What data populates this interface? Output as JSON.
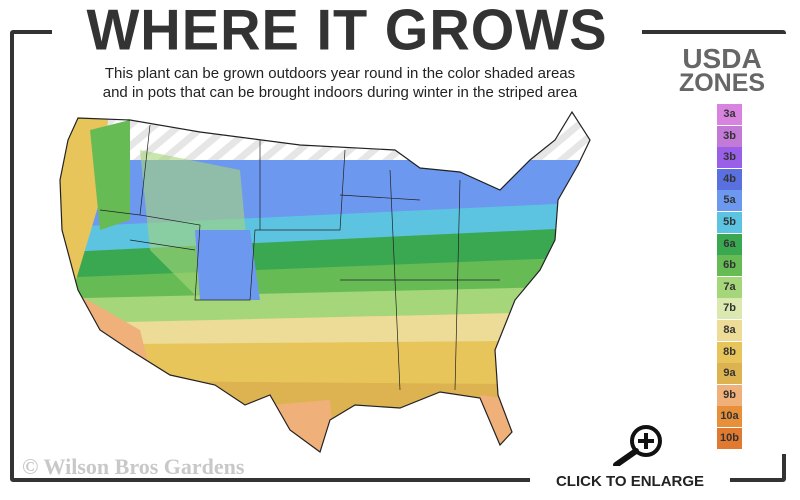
{
  "title": "WHERE IT GROWS",
  "subtitle": [
    "This plant can be grown outdoors year round in the color shaded areas",
    "and in pots that can be brought indoors during winter in the striped area"
  ],
  "legend": {
    "title_line1": "USDA",
    "title_line2": "ZONES",
    "zones": [
      {
        "label": "3a",
        "color": "#d983e0"
      },
      {
        "label": "3b",
        "color": "#c37ad6"
      },
      {
        "label": "3b",
        "color": "#9a5fe8"
      },
      {
        "label": "4b",
        "color": "#5a6fe0"
      },
      {
        "label": "5a",
        "color": "#6d98f0"
      },
      {
        "label": "5b",
        "color": "#5cc4e0"
      },
      {
        "label": "6a",
        "color": "#3aa850"
      },
      {
        "label": "6b",
        "color": "#66bb55"
      },
      {
        "label": "7a",
        "color": "#a6d67a"
      },
      {
        "label": "7b",
        "color": "#dbe9b0"
      },
      {
        "label": "8a",
        "color": "#eddb98"
      },
      {
        "label": "8b",
        "color": "#e8c55a"
      },
      {
        "label": "9a",
        "color": "#ddb352"
      },
      {
        "label": "9b",
        "color": "#f0b07a"
      },
      {
        "label": "10a",
        "color": "#e88f3a"
      },
      {
        "label": "10b",
        "color": "#e07a30"
      }
    ]
  },
  "watermark": "© Wilson Bros Gardens",
  "enlarge": {
    "label": "CLICK TO ENLARGE",
    "icon": "magnifier-plus-icon"
  }
}
